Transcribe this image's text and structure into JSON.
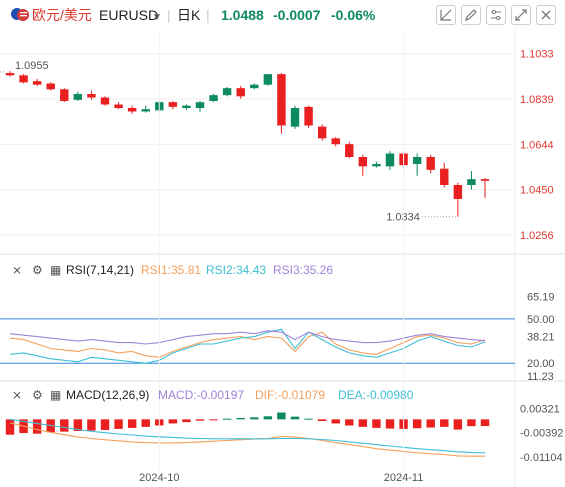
{
  "header": {
    "pair_cn": "欧元/美元",
    "symbol": "EURUSD",
    "timeframe": "日K",
    "price": "1.0488",
    "change": "-0.0007",
    "change_pct": "-0.06%"
  },
  "icons": [
    "flag-icon",
    "dropdown-caret-icon",
    "drawing-tool-icon",
    "pen-icon",
    "settings-icon",
    "fullscreen-icon",
    "close-icon"
  ],
  "colors": {
    "up": "#0e8a5f",
    "down": "#ea1f1f",
    "rsi1": "#f3a05c",
    "rsi2": "#3fbfd6",
    "rsi3": "#9f84d9",
    "macd_line": "#f3a05c",
    "signal_line": "#3fbfd6",
    "level_line": "#3a86e0"
  },
  "rsi_panel": {
    "label": "RSI(7,14,21)",
    "rsi1": "RSI1:35.81",
    "rsi2": "RSI2:34.43",
    "rsi3": "RSI3:35.26"
  },
  "macd_panel": {
    "label": "MACD(12,26,9)",
    "macd": "MACD:-0.00197",
    "dif": "DIF:-0.01079",
    "dea": "DEA:-0.00980"
  },
  "chart_data": [
    {
      "type": "candlestick",
      "title": "EURUSD",
      "y_ticks": [
        "1.1033",
        "1.0839",
        "1.0644",
        "1.0450",
        "1.0256"
      ],
      "ylim": [
        1.02,
        1.11
      ],
      "annotations": {
        "high": "1.0955",
        "low": "1.0334"
      },
      "candles": [
        {
          "o": 1.095,
          "h": 1.0958,
          "l": 1.0935,
          "c": 1.094
        },
        {
          "o": 1.094,
          "h": 1.0945,
          "l": 1.0905,
          "c": 1.091
        },
        {
          "o": 1.0915,
          "h": 1.0925,
          "l": 1.0895,
          "c": 1.09
        },
        {
          "o": 1.0905,
          "h": 1.091,
          "l": 1.0875,
          "c": 1.088
        },
        {
          "o": 1.088,
          "h": 1.0885,
          "l": 1.0825,
          "c": 1.083
        },
        {
          "o": 1.0835,
          "h": 1.087,
          "l": 1.083,
          "c": 1.086
        },
        {
          "o": 1.086,
          "h": 1.0875,
          "l": 1.0835,
          "c": 1.0845
        },
        {
          "o": 1.0845,
          "h": 1.085,
          "l": 1.081,
          "c": 1.0815
        },
        {
          "o": 1.0815,
          "h": 1.0825,
          "l": 1.0795,
          "c": 1.08
        },
        {
          "o": 1.08,
          "h": 1.081,
          "l": 1.0775,
          "c": 1.0785
        },
        {
          "o": 1.0785,
          "h": 1.081,
          "l": 1.078,
          "c": 1.0795
        },
        {
          "o": 1.079,
          "h": 1.083,
          "l": 1.078,
          "c": 1.0825
        },
        {
          "o": 1.0825,
          "h": 1.083,
          "l": 1.0795,
          "c": 1.0805
        },
        {
          "o": 1.08,
          "h": 1.0815,
          "l": 1.079,
          "c": 1.081
        },
        {
          "o": 1.08,
          "h": 1.083,
          "l": 1.0785,
          "c": 1.0825
        },
        {
          "o": 1.083,
          "h": 1.086,
          "l": 1.0825,
          "c": 1.0855
        },
        {
          "o": 1.0855,
          "h": 1.089,
          "l": 1.085,
          "c": 1.0885
        },
        {
          "o": 1.0885,
          "h": 1.0895,
          "l": 1.084,
          "c": 1.085
        },
        {
          "o": 1.0885,
          "h": 1.0905,
          "l": 1.088,
          "c": 1.09
        },
        {
          "o": 1.09,
          "h": 1.0945,
          "l": 1.0895,
          "c": 1.0945
        },
        {
          "o": 1.0945,
          "h": 1.095,
          "l": 1.069,
          "c": 1.0725
        },
        {
          "o": 1.072,
          "h": 1.081,
          "l": 1.071,
          "c": 1.08
        },
        {
          "o": 1.0805,
          "h": 1.081,
          "l": 1.0715,
          "c": 1.0725
        },
        {
          "o": 1.072,
          "h": 1.073,
          "l": 1.066,
          "c": 1.067
        },
        {
          "o": 1.067,
          "h": 1.0675,
          "l": 1.0635,
          "c": 1.0645
        },
        {
          "o": 1.0645,
          "h": 1.0655,
          "l": 1.0585,
          "c": 1.059
        },
        {
          "o": 1.059,
          "h": 1.06,
          "l": 1.051,
          "c": 1.055
        },
        {
          "o": 1.055,
          "h": 1.057,
          "l": 1.0545,
          "c": 1.056
        },
        {
          "o": 1.055,
          "h": 1.0615,
          "l": 1.0535,
          "c": 1.0605
        },
        {
          "o": 1.0605,
          "h": 1.0615,
          "l": 1.0535,
          "c": 1.0555
        },
        {
          "o": 1.056,
          "h": 1.0605,
          "l": 1.051,
          "c": 1.059
        },
        {
          "o": 1.059,
          "h": 1.06,
          "l": 1.052,
          "c": 1.0535
        },
        {
          "o": 1.054,
          "h": 1.0565,
          "l": 1.046,
          "c": 1.047
        },
        {
          "o": 1.047,
          "h": 1.048,
          "l": 1.0334,
          "c": 1.041
        },
        {
          "o": 1.047,
          "h": 1.053,
          "l": 1.045,
          "c": 1.0495
        },
        {
          "o": 1.0495,
          "h": 1.05,
          "l": 1.0415,
          "c": 1.0488
        }
      ]
    },
    {
      "type": "line",
      "title": "RSI(7,14,21)",
      "y_ticks": [
        "65.19",
        "50.00",
        "38.21",
        "20.00",
        "11.23"
      ],
      "ylim": [
        10,
        75
      ],
      "reference_lines": [
        50,
        20
      ],
      "series": [
        {
          "name": "RSI1",
          "values": [
            37,
            36,
            33,
            30,
            29,
            28,
            30,
            29,
            27,
            28,
            25,
            24,
            28,
            31,
            34,
            36,
            37,
            38,
            36,
            38,
            37,
            28,
            38,
            41,
            33,
            29,
            27,
            26,
            30,
            34,
            38,
            39,
            37,
            34,
            33,
            35.81
          ]
        },
        {
          "name": "RSI2",
          "values": [
            26,
            27,
            25,
            23,
            22,
            21,
            24,
            23,
            22,
            21,
            20,
            22,
            27,
            30,
            33,
            33,
            35,
            37,
            38,
            41,
            43,
            30,
            41,
            36,
            31,
            27,
            25,
            24,
            27,
            30,
            35,
            38,
            35,
            32,
            31,
            34.43
          ]
        },
        {
          "name": "RSI3",
          "values": [
            40,
            39,
            38,
            37,
            36,
            35,
            36,
            35,
            34,
            34,
            33,
            34,
            36,
            38,
            39,
            40,
            40,
            41,
            40,
            42,
            41,
            36,
            41,
            38,
            36,
            35,
            34,
            34,
            35,
            37,
            39,
            40,
            38,
            37,
            36,
            35.26
          ]
        }
      ]
    },
    {
      "type": "bar",
      "title": "MACD(12,26,9)",
      "x_ticks": [
        "2024-10",
        "2024-11"
      ],
      "y_ticks": [
        "0.00321",
        "-0.00392",
        "-0.01104"
      ],
      "ylim": [
        -0.0125,
        0.0045
      ],
      "histogram": [
        -0.0045,
        -0.004,
        -0.0042,
        -0.0038,
        -0.0036,
        -0.0034,
        -0.0033,
        -0.0031,
        -0.0028,
        -0.0025,
        -0.0022,
        -0.0018,
        -0.0012,
        -0.0008,
        -0.0004,
        -0.0001,
        0.0002,
        0.0004,
        0.0006,
        0.0009,
        0.002,
        0.0008,
        0.0002,
        -0.0005,
        -0.0012,
        -0.0018,
        -0.0022,
        -0.0025,
        -0.0027,
        -0.0028,
        -0.0026,
        -0.0024,
        -0.0022,
        -0.003,
        -0.002,
        -0.00197
      ],
      "series": [
        {
          "name": "DIF",
          "values": [
            -0.001,
            -0.002,
            -0.003,
            -0.0038,
            -0.0045,
            -0.0052,
            -0.0056,
            -0.006,
            -0.0063,
            -0.0066,
            -0.0068,
            -0.0069,
            -0.0069,
            -0.0068,
            -0.0066,
            -0.0064,
            -0.0062,
            -0.006,
            -0.0058,
            -0.0056,
            -0.005,
            -0.0052,
            -0.0056,
            -0.0062,
            -0.0068,
            -0.0074,
            -0.008,
            -0.0086,
            -0.009,
            -0.0094,
            -0.0098,
            -0.0101,
            -0.0103,
            -0.0107,
            -0.0108,
            -0.01079
          ]
        },
        {
          "name": "DEA",
          "values": [
            0.0,
            -0.0006,
            -0.0012,
            -0.0018,
            -0.0024,
            -0.003,
            -0.0035,
            -0.0039,
            -0.0043,
            -0.0046,
            -0.0049,
            -0.0051,
            -0.0053,
            -0.0055,
            -0.0056,
            -0.0057,
            -0.0057,
            -0.0057,
            -0.0057,
            -0.0057,
            -0.0056,
            -0.0056,
            -0.0057,
            -0.0059,
            -0.0062,
            -0.0066,
            -0.007,
            -0.0074,
            -0.0078,
            -0.0082,
            -0.0086,
            -0.0089,
            -0.0092,
            -0.0095,
            -0.0097,
            -0.0098
          ]
        }
      ]
    }
  ]
}
